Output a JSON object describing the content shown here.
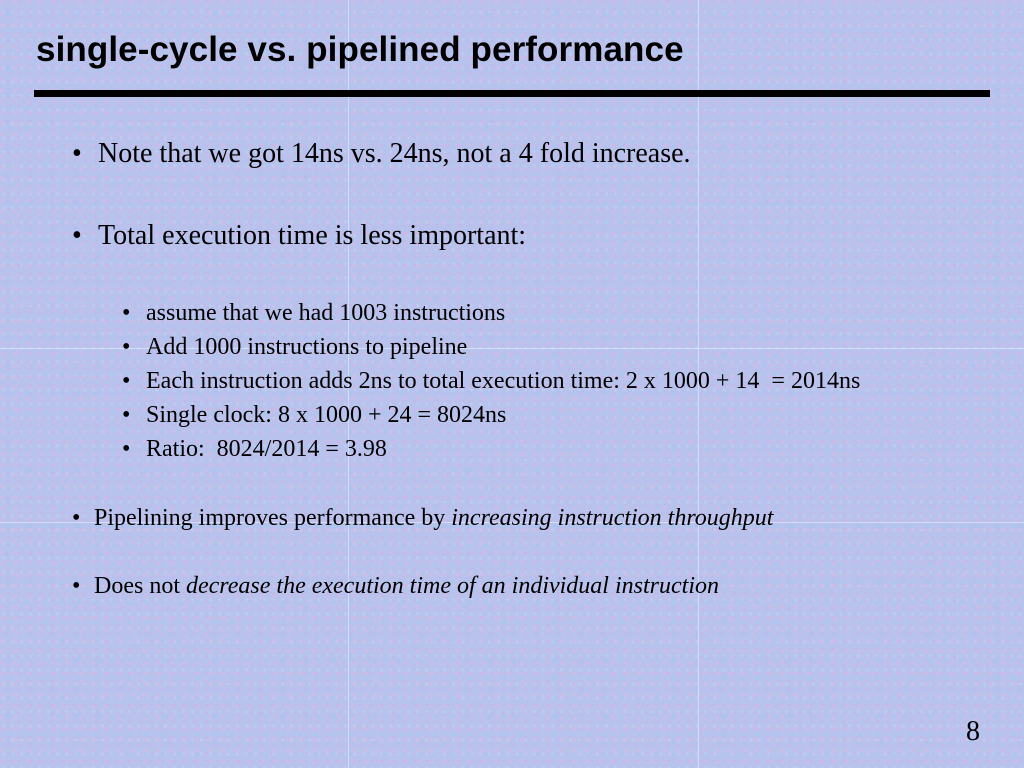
{
  "slide": {
    "title": "single-cycle vs. pipelined performance",
    "bullet_glyph": "•",
    "bullets": [
      "Note that we got 14ns vs. 24ns, not a 4 fold increase.",
      "Total execution time is less important:"
    ],
    "sub_bullets": [
      "assume that we had 1003 instructions",
      "Add 1000 instructions to pipeline",
      "Each instruction adds 2ns to total execution time: 2 x 1000 + 14  = 2014ns",
      "Single clock: 8 x 1000 + 24 = 8024ns",
      "Ratio:  8024/2014 = 3.98"
    ],
    "pipelining": {
      "prefix": "Pipelining improves performance by ",
      "emphasis": "increasing instruction throughput"
    },
    "does_not": {
      "prefix": "Does not ",
      "emphasis": "decrease the execution time of an individual instruction"
    },
    "page_number": "8",
    "background_color": "#b7c3ec"
  }
}
